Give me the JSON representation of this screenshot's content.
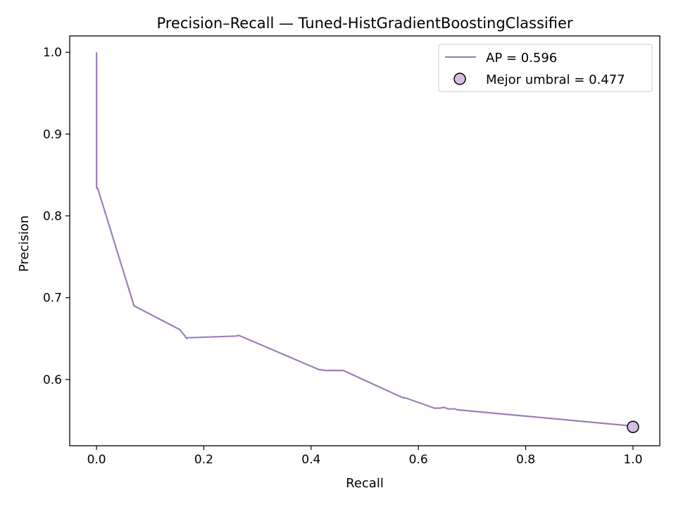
{
  "chart_data": {
    "type": "line",
    "title": "Precision–Recall — Tuned-HistGradientBoostingClassifier",
    "xlabel": "Recall",
    "ylabel": "Precision",
    "xlim": [
      -0.05,
      1.05
    ],
    "ylim": [
      0.519,
      1.02
    ],
    "xticks": [
      0.0,
      0.2,
      0.4,
      0.6,
      0.8,
      1.0
    ],
    "xtick_labels": [
      "0.0",
      "0.2",
      "0.4",
      "0.6",
      "0.8",
      "1.0"
    ],
    "yticks": [
      0.6,
      0.7,
      0.8,
      0.9,
      1.0
    ],
    "ytick_labels": [
      "0.6",
      "0.7",
      "0.8",
      "0.9",
      "1.0"
    ],
    "grid": false,
    "legend_position": "top-right",
    "series": [
      {
        "name": "AP = 0.596",
        "color": "#9c7fba",
        "x": [
          0.0,
          0.0,
          0.002,
          0.07,
          0.155,
          0.16,
          0.165,
          0.168,
          0.17,
          0.26,
          0.265,
          0.415,
          0.42,
          0.425,
          0.46,
          0.57,
          0.578,
          0.63,
          0.64,
          0.648,
          0.655,
          0.662,
          0.668,
          0.672,
          1.0
        ],
        "y": [
          1.0,
          0.834,
          0.834,
          0.69,
          0.661,
          0.657,
          0.653,
          0.65,
          0.651,
          0.653,
          0.654,
          0.612,
          0.612,
          0.611,
          0.611,
          0.578,
          0.577,
          0.565,
          0.565,
          0.566,
          0.564,
          0.564,
          0.564,
          0.563,
          0.543
        ]
      }
    ],
    "markers": [
      {
        "name": "Mejor umbral = 0.477",
        "x": 1.0,
        "y": 0.542,
        "fill": "#d4bde2",
        "edge": "#000000"
      }
    ]
  }
}
